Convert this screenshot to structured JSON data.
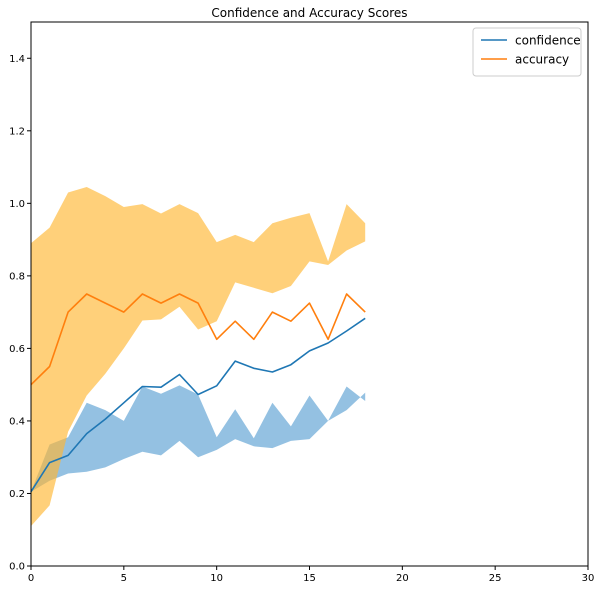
{
  "chart_data": {
    "type": "line",
    "title": "Confidence and Accuracy Scores",
    "xlabel": "",
    "ylabel": "",
    "xlim": [
      0,
      30
    ],
    "ylim": [
      0,
      1.5
    ],
    "x_ticks": [
      0,
      5,
      10,
      15,
      20,
      25,
      30
    ],
    "y_ticks": [
      0.0,
      0.2,
      0.4,
      0.6,
      0.8,
      1.0,
      1.2,
      1.4
    ],
    "grid": false,
    "legend_position": "top-right",
    "x": [
      0,
      1,
      2,
      3,
      4,
      5,
      6,
      7,
      8,
      9,
      10,
      11,
      12,
      13,
      14,
      15,
      16,
      17,
      18
    ],
    "series": [
      {
        "name": "confidence",
        "color": "#1f77b4",
        "band_color": "#5b9fd3",
        "values": [
          0.205,
          0.285,
          0.305,
          0.365,
          0.405,
          0.45,
          0.495,
          0.493,
          0.528,
          0.473,
          0.497,
          0.565,
          0.545,
          0.535,
          0.555,
          0.593,
          0.615,
          0.648,
          0.683
        ],
        "band_lower": [
          0.205,
          0.235,
          0.255,
          0.26,
          0.272,
          0.295,
          0.315,
          0.305,
          0.345,
          0.3,
          0.32,
          0.35,
          0.33,
          0.325,
          0.345,
          0.35,
          0.4,
          0.43,
          0.478
        ],
        "band_upper": [
          0.205,
          0.335,
          0.355,
          0.45,
          0.43,
          0.4,
          0.495,
          0.475,
          0.498,
          0.473,
          0.355,
          0.432,
          0.352,
          0.45,
          0.385,
          0.47,
          0.4,
          0.495,
          0.455
        ]
      },
      {
        "name": "accuracy",
        "color": "#ff7f0e",
        "band_color": "#ffb733",
        "values": [
          0.5,
          0.55,
          0.7,
          0.75,
          0.725,
          0.7,
          0.75,
          0.725,
          0.75,
          0.725,
          0.625,
          0.675,
          0.625,
          0.7,
          0.675,
          0.725,
          0.625,
          0.75,
          0.7
        ],
        "band_lower": [
          0.11,
          0.167,
          0.37,
          0.47,
          0.53,
          0.6,
          0.677,
          0.68,
          0.715,
          0.652,
          0.675,
          0.782,
          0.767,
          0.752,
          0.772,
          0.84,
          0.83,
          0.87,
          0.895
        ],
        "band_upper": [
          0.89,
          0.933,
          1.03,
          1.045,
          1.02,
          0.99,
          0.998,
          0.972,
          0.998,
          0.973,
          0.893,
          0.913,
          0.893,
          0.945,
          0.96,
          0.973,
          0.84,
          0.998,
          0.945
        ]
      }
    ]
  }
}
